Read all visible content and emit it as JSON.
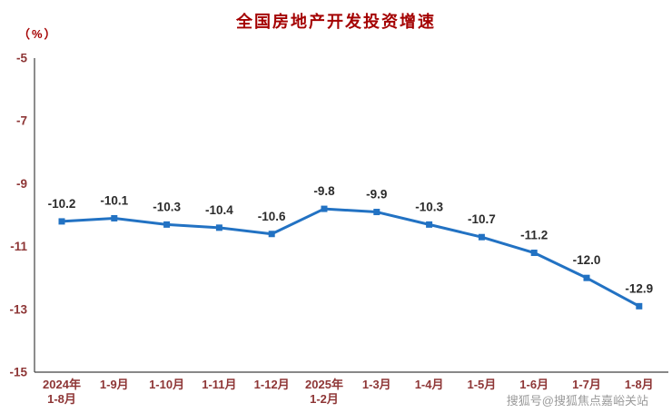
{
  "header": {
    "title": "全国房地产开发投资增速",
    "unit_label": "（%）"
  },
  "footer": {
    "watermark": "搜狐号@搜狐焦点嘉峪关站"
  },
  "colors": {
    "title": "#a40000",
    "axis_text": "#8e3636",
    "axis_line": "#404040",
    "data_label": "#2b2b2b",
    "line": "#2272c3",
    "marker": "#2272c3"
  },
  "chart_data": {
    "type": "line",
    "title": "全国房地产开发投资增速",
    "ylabel": "（%）",
    "categories": [
      "2024年\n1-8月",
      "1-9月",
      "1-10月",
      "1-11月",
      "1-12月",
      "2025年\n1-2月",
      "1-3月",
      "1-4月",
      "1-5月",
      "1-6月",
      "1-7月",
      "1-8月"
    ],
    "values": [
      -10.2,
      -10.1,
      -10.3,
      -10.4,
      -10.6,
      -9.8,
      -9.9,
      -10.3,
      -10.7,
      -11.2,
      -12.0,
      -12.9
    ],
    "data_labels": [
      "-10.2",
      "-10.1",
      "-10.3",
      "-10.4",
      "-10.6",
      "-9.8",
      "-9.9",
      "-10.3",
      "-10.7",
      "-11.2",
      "-12.0",
      "-12.9"
    ],
    "ylim": [
      -15,
      -5
    ],
    "yticks": [
      -5,
      -7,
      -9,
      -11,
      -13,
      -15
    ],
    "grid": false,
    "legend_position": "none",
    "marker_shape": "square"
  }
}
